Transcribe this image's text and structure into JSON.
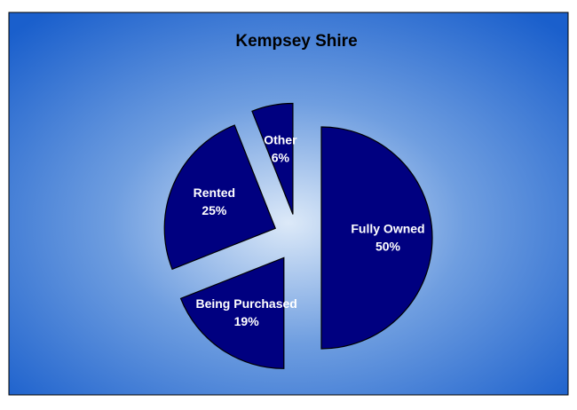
{
  "chart_data": {
    "type": "pie",
    "title": "Kempsey Shire",
    "categories": [
      "Fully Owned",
      "Being Purchased",
      "Rented",
      "Other"
    ],
    "values": [
      50,
      19,
      25,
      6
    ],
    "value_labels": [
      "50%",
      "19%",
      "25%",
      "6%"
    ],
    "color": "#000080"
  }
}
